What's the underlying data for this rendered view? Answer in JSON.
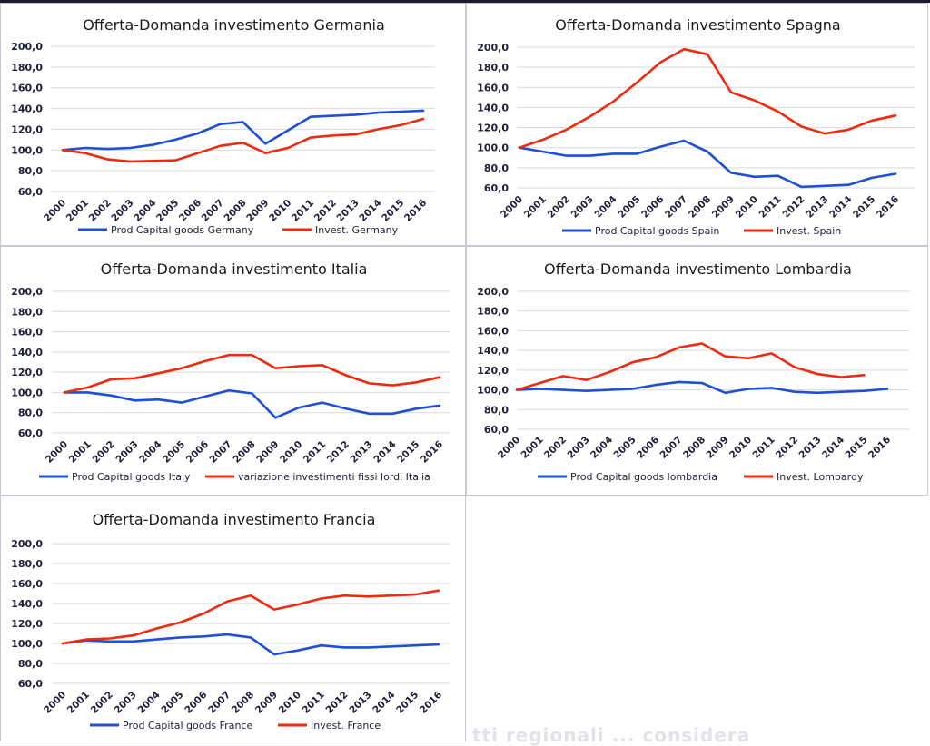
{
  "colors": {
    "series1": "#1f4fd6",
    "series2": "#ee2a10"
  },
  "faded_caption": "tti   regionali  ...  considera",
  "chart_data": [
    {
      "type": "line",
      "title": "Offerta-Domanda investimento Germania",
      "x": [
        "2000",
        "2001",
        "2002",
        "2003",
        "2004",
        "2005",
        "2006",
        "2007",
        "2008",
        "2009",
        "2010",
        "2011",
        "2012",
        "2013",
        "2014",
        "2015",
        "2016"
      ],
      "yticks": [
        "200,0",
        "180,0",
        "160,0",
        "140,0",
        "120,0",
        "100,0",
        "80,0",
        "60,0"
      ],
      "ylim": [
        60,
        200
      ],
      "grid": true,
      "legend": "bottom",
      "series": [
        {
          "name": "Prod Capital goods Germany",
          "values": [
            100,
            102,
            101,
            102,
            105,
            110,
            116,
            125,
            127,
            106,
            119,
            132,
            133,
            134,
            136,
            137,
            138
          ]
        },
        {
          "name": "Invest. Germany",
          "values": [
            100,
            97,
            91,
            89,
            89.5,
            90,
            97,
            104,
            107,
            97,
            102,
            112,
            114,
            115,
            120,
            124,
            130
          ]
        }
      ]
    },
    {
      "type": "line",
      "title": "Offerta-Domanda investimento Spagna",
      "x": [
        "2000",
        "2001",
        "2002",
        "2003",
        "2004",
        "2005",
        "2006",
        "2007",
        "2008",
        "2009",
        "2010",
        "2011",
        "2012",
        "2013",
        "2014",
        "2015",
        "2016"
      ],
      "yticks": [
        "200,0",
        "180,0",
        "160,0",
        "140,0",
        "120,0",
        "100,0",
        "80,0",
        "60,0"
      ],
      "ylim": [
        60,
        200
      ],
      "grid": true,
      "legend": "bottom",
      "series": [
        {
          "name": "Prod Capital goods Spain",
          "values": [
            100,
            96,
            92,
            92,
            94,
            94,
            101,
            107,
            96,
            75,
            71,
            72,
            61,
            62,
            63,
            70,
            74
          ]
        },
        {
          "name": "Invest. Spain",
          "values": [
            100,
            108,
            118,
            131,
            146,
            165,
            185,
            198,
            193,
            155,
            147,
            136,
            121,
            114,
            118,
            127,
            132
          ]
        }
      ]
    },
    {
      "type": "line",
      "title": "Offerta-Domanda investimento Italia",
      "x": [
        "2000",
        "2001",
        "2002",
        "2003",
        "2004",
        "2005",
        "2006",
        "2007",
        "2008",
        "2009",
        "2010",
        "2011",
        "2012",
        "2013",
        "2014",
        "2015",
        "2016"
      ],
      "yticks": [
        "200,0",
        "180,0",
        "160,0",
        "140,0",
        "120,0",
        "100,0",
        "80,0",
        "60,0"
      ],
      "ylim": [
        60,
        200
      ],
      "grid": true,
      "legend": "bottom",
      "series": [
        {
          "name": "Prod Capital goods Italy",
          "values": [
            100,
            100,
            97,
            92,
            93,
            90,
            96,
            102,
            99,
            75,
            85,
            90,
            84,
            79,
            79,
            84,
            87
          ]
        },
        {
          "name": "variazione investimenti fissi lordi Italia",
          "values": [
            100,
            105,
            113,
            114,
            119,
            124,
            131,
            137,
            137,
            124,
            126,
            127,
            117,
            109,
            107,
            110,
            115
          ]
        }
      ]
    },
    {
      "type": "line",
      "title": "Offerta-Domanda investimento Lombardia",
      "x": [
        "2000",
        "2001",
        "2002",
        "2003",
        "2004",
        "2005",
        "2006",
        "2007",
        "2008",
        "2009",
        "2010",
        "2011",
        "2012",
        "2013",
        "2014",
        "2015",
        "2016"
      ],
      "yticks": [
        "200,0",
        "180,0",
        "160,0",
        "140,0",
        "120,0",
        "100,0",
        "80,0",
        "60,0"
      ],
      "ylim": [
        60,
        200
      ],
      "grid": true,
      "legend": "bottom",
      "series": [
        {
          "name": "Prod Capital goods lombardia",
          "values": [
            100,
            101,
            100,
            99,
            100,
            101,
            105,
            108,
            107,
            97,
            101,
            102,
            98,
            97,
            98,
            99,
            101
          ]
        },
        {
          "name": "Invest. Lombardy",
          "values": [
            100,
            107,
            114,
            110,
            118,
            128,
            133,
            143,
            147,
            134,
            132,
            137,
            123,
            116,
            113,
            115,
            null
          ]
        }
      ]
    },
    {
      "type": "line",
      "title": "Offerta-Domanda investimento Francia",
      "x": [
        "2000",
        "2001",
        "2002",
        "2003",
        "2004",
        "2005",
        "2006",
        "2007",
        "2008",
        "2009",
        "2010",
        "2011",
        "2012",
        "2013",
        "2014",
        "2015",
        "2016"
      ],
      "yticks": [
        "200,0",
        "180,0",
        "160,0",
        "140,0",
        "120,0",
        "100,0",
        "80,0",
        "60,0"
      ],
      "ylim": [
        60,
        200
      ],
      "grid": true,
      "legend": "bottom",
      "series": [
        {
          "name": "Prod Capital goods France",
          "values": [
            100,
            103,
            102,
            102,
            104,
            106,
            107,
            109,
            106,
            89,
            93,
            98,
            96,
            96,
            97,
            98,
            99
          ]
        },
        {
          "name": "Invest. France",
          "values": [
            100,
            104,
            105,
            108,
            115,
            121,
            130,
            142,
            148,
            134,
            139,
            145,
            148,
            147,
            148,
            149,
            153
          ]
        }
      ]
    }
  ]
}
